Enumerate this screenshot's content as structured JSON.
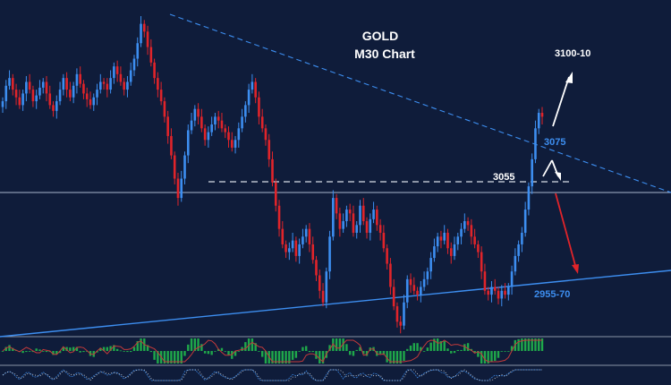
{
  "chart_data": {
    "type": "candlestick",
    "symbol": "GOLD",
    "timeframe_label": "M30 Chart",
    "levels": [
      {
        "name": "target-high",
        "label": "3100-10",
        "value": 3105,
        "color": "#ffffff"
      },
      {
        "name": "resistance-trendline",
        "label": "3075",
        "value": 3075,
        "color": "#3d8ef0"
      },
      {
        "name": "horizontal-resistance",
        "label": "3055",
        "value": 3055,
        "color": "#ffffff"
      },
      {
        "name": "support-trendline",
        "label": "2955-70",
        "value": 2962,
        "color": "#3d8ef0"
      }
    ],
    "scenarios": [
      {
        "name": "bullish-breakout",
        "direction": "up",
        "target": "3100-10",
        "color": "#ffffff"
      },
      {
        "name": "bearish-rejection",
        "direction": "down",
        "target": "2955-70",
        "color": "#e0242a"
      }
    ],
    "candles": {
      "up_color": "#3d8ef0",
      "down_color": "#e0242a",
      "series": [
        3060,
        3068,
        3072,
        3066,
        3062,
        3058,
        3064,
        3070,
        3066,
        3060,
        3063,
        3067,
        3070,
        3064,
        3058,
        3055,
        3060,
        3066,
        3072,
        3066,
        3062,
        3068,
        3074,
        3069,
        3064,
        3061,
        3058,
        3062,
        3066,
        3070,
        3069,
        3066,
        3072,
        3078,
        3074,
        3070,
        3066,
        3070,
        3076,
        3082,
        3090,
        3100,
        3096,
        3088,
        3080,
        3072,
        3066,
        3060,
        3052,
        3042,
        3032,
        3020,
        3010,
        3020,
        3032,
        3045,
        3050,
        3056,
        3052,
        3046,
        3040,
        3044,
        3048,
        3052,
        3050,
        3046,
        3044,
        3040,
        3036,
        3040,
        3046,
        3052,
        3058,
        3066,
        3070,
        3062,
        3052,
        3046,
        3040,
        3030,
        3018,
        3006,
        2994,
        2986,
        2982,
        2984,
        2988,
        2980,
        2986,
        2990,
        2994,
        2986,
        2978,
        2970,
        2962,
        2956,
        2972,
        2990,
        3010,
        3002,
        2994,
        2998,
        3004,
        3002,
        2992,
        2996,
        3006,
        2998,
        2992,
        2999,
        3004,
        2996,
        2992,
        2984,
        2976,
        2964,
        2954,
        2946,
        2944,
        2956,
        2968,
        2965,
        2962,
        2960,
        2964,
        2968,
        2972,
        2979,
        2985,
        2990,
        2988,
        2992,
        2984,
        2980,
        2986,
        2990,
        2994,
        2998,
        2996,
        2990,
        2986,
        2982,
        2972,
        2962,
        2960,
        2964,
        2962,
        2958,
        2962,
        2960,
        2964,
        2972,
        2980,
        2986,
        2992,
        3004,
        3016,
        3030,
        3046,
        3054,
        3052
      ]
    },
    "indicators": [
      {
        "name": "histogram-oscillator",
        "colors": [
          "#1fa84a",
          "#c43a3a"
        ]
      },
      {
        "name": "momentum-oscillator",
        "colors": [
          "#3d8ef0",
          "#ffffff"
        ]
      }
    ]
  }
}
